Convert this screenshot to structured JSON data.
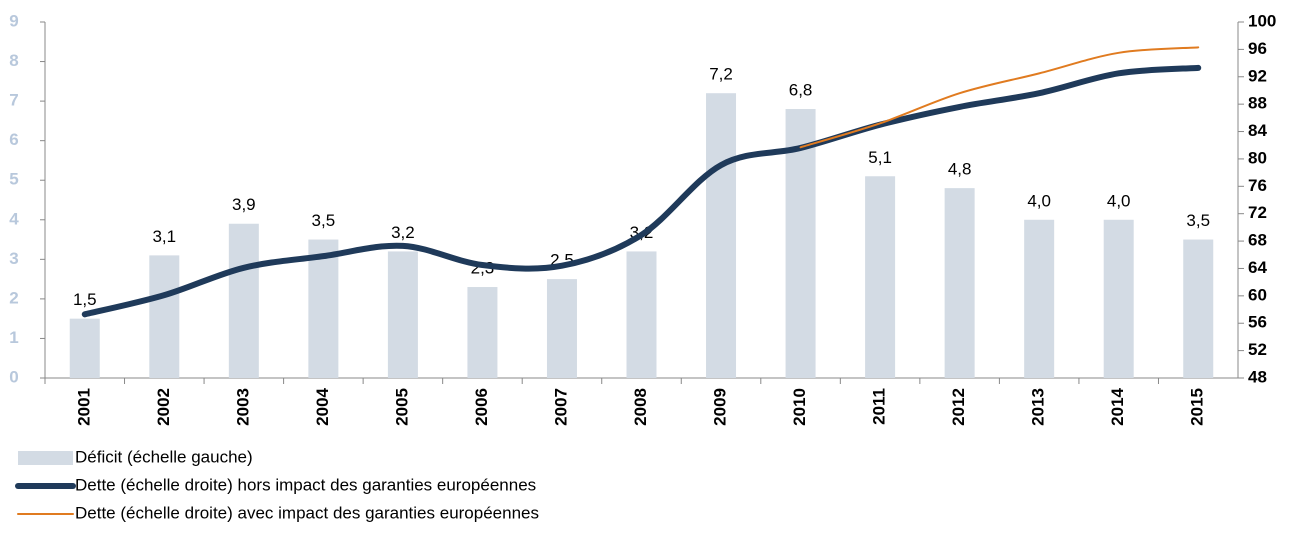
{
  "chart_data": {
    "type": "bar",
    "categories": [
      "2001",
      "2002",
      "2003",
      "2004",
      "2005",
      "2006",
      "2007",
      "2008",
      "2009",
      "2010",
      "2011",
      "2012",
      "2013",
      "2014",
      "2015"
    ],
    "series": [
      {
        "name": "Déficit (échelle gauche)",
        "type": "bar",
        "color": "#d3dbe4",
        "values": [
          1.5,
          3.1,
          3.9,
          3.5,
          3.2,
          2.3,
          2.5,
          3.2,
          7.2,
          6.8,
          5.1,
          4.8,
          4.0,
          4.0,
          3.5
        ],
        "value_labels": [
          "1,5",
          "3,1",
          "3,9",
          "3,5",
          "3,2",
          "2,3",
          "2,5",
          "3,2",
          "7,2",
          "6,8",
          "5,1",
          "4,8",
          "4,0",
          "4,0",
          "3,5"
        ]
      },
      {
        "name": "Dette (échelle droite) hors impact des garanties européennes",
        "type": "line",
        "axis": "y2",
        "color": "#1f3a5a",
        "values": [
          57.3,
          60.1,
          64.1,
          65.8,
          67.3,
          64.5,
          64.4,
          68.9,
          79.1,
          81.6,
          85.0,
          87.6,
          89.6,
          92.5,
          93.3
        ]
      },
      {
        "name": "Dette (échelle droite) avec impact des garanties européennes",
        "type": "line",
        "axis": "y2",
        "color": "#e07b20",
        "values": [
          null,
          null,
          null,
          null,
          null,
          null,
          null,
          null,
          null,
          81.7,
          85.2,
          89.6,
          92.5,
          95.5,
          96.3
        ]
      }
    ],
    "ylim": [
      0,
      9
    ],
    "yticks": [
      0,
      1,
      2,
      3,
      4,
      5,
      6,
      7,
      8,
      9
    ],
    "y2lim": [
      48,
      100
    ],
    "y2ticks": [
      48,
      52,
      56,
      60,
      64,
      68,
      72,
      76,
      80,
      84,
      88,
      92,
      96,
      100
    ],
    "grid": false,
    "legend": "bottom"
  }
}
